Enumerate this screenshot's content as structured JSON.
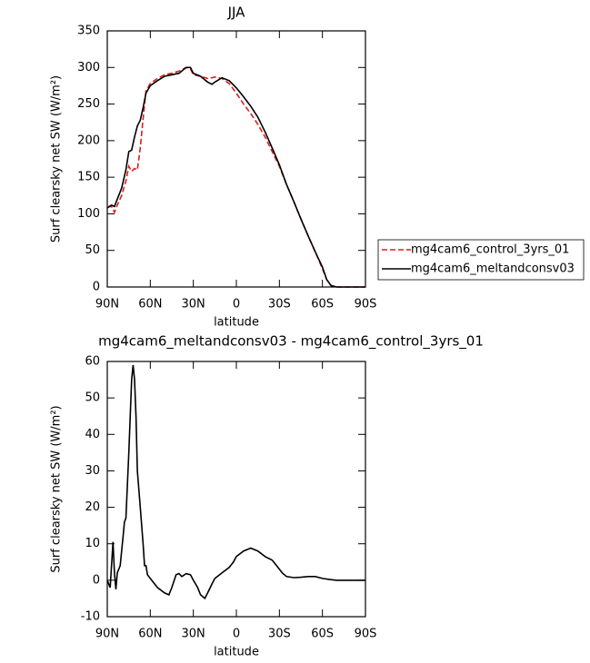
{
  "chart_data": [
    {
      "type": "line",
      "title": "JJA",
      "xlabel": "latitude",
      "ylabel": "Surf clearsky net SW (W/m²)",
      "x": [
        90,
        87,
        85,
        83,
        80,
        77,
        75,
        73,
        71,
        69,
        67,
        65,
        63,
        60,
        55,
        50,
        45,
        40,
        35,
        32,
        30,
        25,
        20,
        17,
        15,
        10,
        5,
        0,
        -5,
        -10,
        -15,
        -20,
        -25,
        -30,
        -35,
        -40,
        -45,
        -50,
        -55,
        -60,
        -63,
        -66,
        -70,
        -80,
        -90
      ],
      "series": [
        {
          "name": "mg4cam6_control_3yrs_01",
          "color": "#e41a1c",
          "dashed": true,
          "values": [
            110,
            110,
            102,
            112,
            125,
            145,
            165,
            158,
            162,
            160,
            190,
            230,
            268,
            278,
            285,
            290,
            292,
            295,
            300,
            298,
            290,
            288,
            285,
            286,
            287,
            285,
            278,
            265,
            250,
            237,
            222,
            205,
            185,
            165,
            140,
            117,
            93,
            70,
            48,
            25,
            10,
            2,
            0,
            0,
            0
          ]
        },
        {
          "name": "mg4cam6_meltandconsv03",
          "color": "#000000",
          "dashed": false,
          "values": [
            108,
            112,
            110,
            120,
            135,
            160,
            185,
            187,
            205,
            220,
            228,
            245,
            265,
            275,
            282,
            288,
            290,
            292,
            300,
            300,
            292,
            288,
            280,
            277,
            280,
            286,
            282,
            272,
            260,
            247,
            232,
            212,
            190,
            167,
            140,
            117,
            93,
            70,
            48,
            27,
            10,
            2,
            0,
            0,
            0
          ]
        }
      ],
      "xlim": [
        90,
        -90
      ],
      "xticks": [
        {
          "value": 90,
          "label": "90N"
        },
        {
          "value": 60,
          "label": "60N"
        },
        {
          "value": 30,
          "label": "30N"
        },
        0,
        {
          "value": -30,
          "label": "30S"
        },
        {
          "value": -60,
          "label": "60S"
        },
        {
          "value": -90,
          "label": "90S"
        }
      ],
      "ylim": [
        0,
        350
      ],
      "yticks": [
        0,
        50,
        100,
        150,
        200,
        250,
        300,
        350
      ],
      "legend": "right"
    },
    {
      "type": "line",
      "title": "mg4cam6_meltandconsv03 - mg4cam6_control_3yrs_01",
      "xlabel": "latitude",
      "ylabel": "Surf clearsky net SW (W/m²)",
      "x": [
        90,
        88,
        86,
        85,
        84,
        83,
        81,
        79,
        78,
        77,
        75,
        73,
        72,
        71,
        70,
        69,
        68,
        67,
        65,
        64,
        63,
        62,
        60,
        55,
        50,
        47,
        45,
        42,
        40,
        38,
        35,
        32,
        30,
        27,
        25,
        22,
        20,
        17,
        15,
        10,
        5,
        2,
        0,
        -5,
        -10,
        -15,
        -20,
        -25,
        -28,
        -32,
        -35,
        -40,
        -45,
        -50,
        -55,
        -60,
        -65,
        -70,
        -90
      ],
      "series": [
        {
          "color": "#000000",
          "dashed": false,
          "values": [
            0,
            -2,
            10.5,
            2,
            -2.5,
            2,
            4,
            12,
            16,
            17,
            35,
            55,
            59,
            55,
            45,
            30,
            25,
            20,
            10,
            4,
            4,
            1.5,
            0.5,
            -2,
            -3.5,
            -4,
            -2,
            1.5,
            1.8,
            1,
            1.8,
            1.5,
            0,
            -2,
            -4,
            -5,
            -3.5,
            -1,
            0.5,
            2,
            3.5,
            5,
            6.5,
            8,
            8.8,
            8,
            6.5,
            5.5,
            4,
            2,
            1,
            0.7,
            0.8,
            1,
            1,
            0.5,
            0.2,
            0,
            0
          ]
        }
      ],
      "xlim": [
        90,
        -90
      ],
      "xticks": [
        {
          "value": 90,
          "label": "90N"
        },
        {
          "value": 60,
          "label": "60N"
        },
        {
          "value": 30,
          "label": "30N"
        },
        0,
        {
          "value": -30,
          "label": "30S"
        },
        {
          "value": -60,
          "label": "60S"
        },
        {
          "value": -90,
          "label": "90S"
        }
      ],
      "ylim": [
        -10,
        60
      ],
      "yticks": [
        -10,
        0,
        10,
        20,
        30,
        40,
        50,
        60
      ]
    }
  ]
}
